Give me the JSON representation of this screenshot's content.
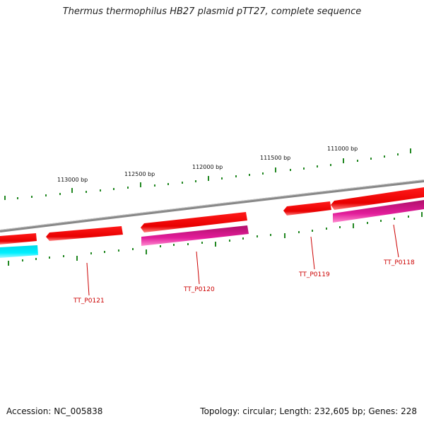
{
  "title": "Thermus thermophilus HB27 plasmid pTT27, complete sequence",
  "footer": {
    "accession": "Accession: NC_005838",
    "summary": "Topology: circular; Length: 232,605 bp; Genes: 228"
  },
  "scale_labels": [
    "113000 bp",
    "112500 bp",
    "112000 bp",
    "111500 bp",
    "111000 bp"
  ],
  "gene_labels": [
    "TT_P0121",
    "TT_P0120",
    "TT_P0119",
    "TT_P0118"
  ],
  "colors": {
    "backbone": "#888888",
    "forward_gene": "#ee0000",
    "reverse_gene": "#dd1199",
    "cyan_feature": "#00e5ee",
    "tick": "#228822",
    "label": "#cc0000"
  }
}
